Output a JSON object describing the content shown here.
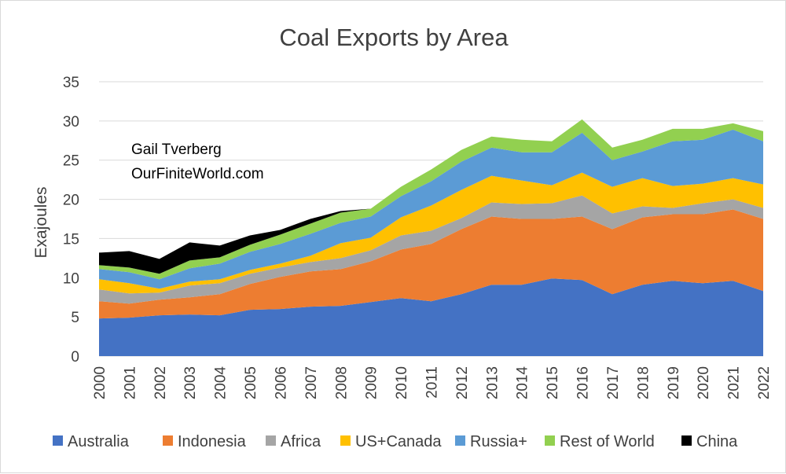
{
  "chart_data": {
    "type": "area",
    "stacked": true,
    "title": "Coal Exports by Area",
    "xlabel": "",
    "ylabel": "Exajoules",
    "ylim": [
      0,
      35
    ],
    "yticks": [
      0,
      5,
      10,
      15,
      20,
      25,
      30,
      35
    ],
    "grid": "horizontal",
    "legend_position": "bottom",
    "annotations": [
      "Gail Tverberg",
      "OurFiniteWorld.com"
    ],
    "x": [
      "2000",
      "2001",
      "2002",
      "2003",
      "2004",
      "2005",
      "2006",
      "2007",
      "2008",
      "2009",
      "2010",
      "2011",
      "2012",
      "2013",
      "2014",
      "2015",
      "2016",
      "2017",
      "2018",
      "2019",
      "2020",
      "2021",
      "2022"
    ],
    "series": [
      {
        "name": "Australia",
        "color": "#4472C4",
        "values": [
          4.8,
          4.9,
          5.2,
          5.3,
          5.2,
          5.9,
          6.0,
          6.3,
          6.4,
          6.9,
          7.4,
          7.0,
          7.9,
          9.1,
          9.1,
          9.9,
          9.7,
          7.9,
          9.1,
          9.6,
          9.3,
          9.6,
          8.3
        ]
      },
      {
        "name": "Indonesia",
        "color": "#ED7D31",
        "values": [
          2.2,
          1.8,
          2.0,
          2.2,
          2.7,
          3.3,
          4.1,
          4.5,
          4.7,
          5.2,
          6.2,
          7.3,
          8.3,
          8.7,
          8.4,
          7.6,
          8.1,
          8.3,
          8.6,
          8.5,
          8.8,
          9.1,
          9.2
        ]
      },
      {
        "name": "Africa",
        "color": "#A5A5A5",
        "values": [
          1.5,
          1.3,
          0.9,
          1.5,
          1.4,
          1.3,
          1.2,
          1.2,
          1.4,
          1.4,
          1.8,
          1.7,
          1.4,
          1.8,
          1.9,
          2.0,
          2.7,
          2.0,
          1.4,
          0.8,
          1.4,
          1.3,
          1.4
        ]
      },
      {
        "name": "US+Canada",
        "color": "#FFC000",
        "values": [
          1.3,
          1.3,
          0.5,
          0.5,
          0.5,
          0.5,
          0.5,
          0.8,
          1.9,
          1.6,
          2.3,
          3.2,
          3.6,
          3.4,
          3.0,
          2.3,
          2.9,
          3.4,
          3.6,
          2.8,
          2.5,
          2.7,
          3.0
        ]
      },
      {
        "name": "Russia+",
        "color": "#5B9BD5",
        "values": [
          1.3,
          1.4,
          1.2,
          1.7,
          2.0,
          2.3,
          2.5,
          2.8,
          2.6,
          2.7,
          2.7,
          3.1,
          3.6,
          3.6,
          3.6,
          4.2,
          5.1,
          3.4,
          3.4,
          5.7,
          5.6,
          6.2,
          5.5
        ]
      },
      {
        "name": "Rest of World",
        "color": "#92D050",
        "values": [
          0.5,
          0.6,
          0.7,
          1.0,
          0.8,
          0.9,
          1.2,
          1.3,
          1.3,
          1.0,
          1.2,
          1.5,
          1.5,
          1.4,
          1.6,
          1.4,
          1.7,
          1.6,
          1.5,
          1.6,
          1.4,
          0.8,
          1.3
        ]
      },
      {
        "name": "China",
        "color": "#000000",
        "values": [
          1.6,
          2.1,
          1.9,
          2.3,
          1.5,
          1.2,
          0.6,
          0.6,
          0.2,
          0.0,
          0.0,
          0.0,
          0.0,
          0.0,
          0.0,
          0.0,
          0.0,
          0.0,
          0.0,
          0.0,
          0.0,
          0.0,
          0.0
        ]
      }
    ]
  }
}
